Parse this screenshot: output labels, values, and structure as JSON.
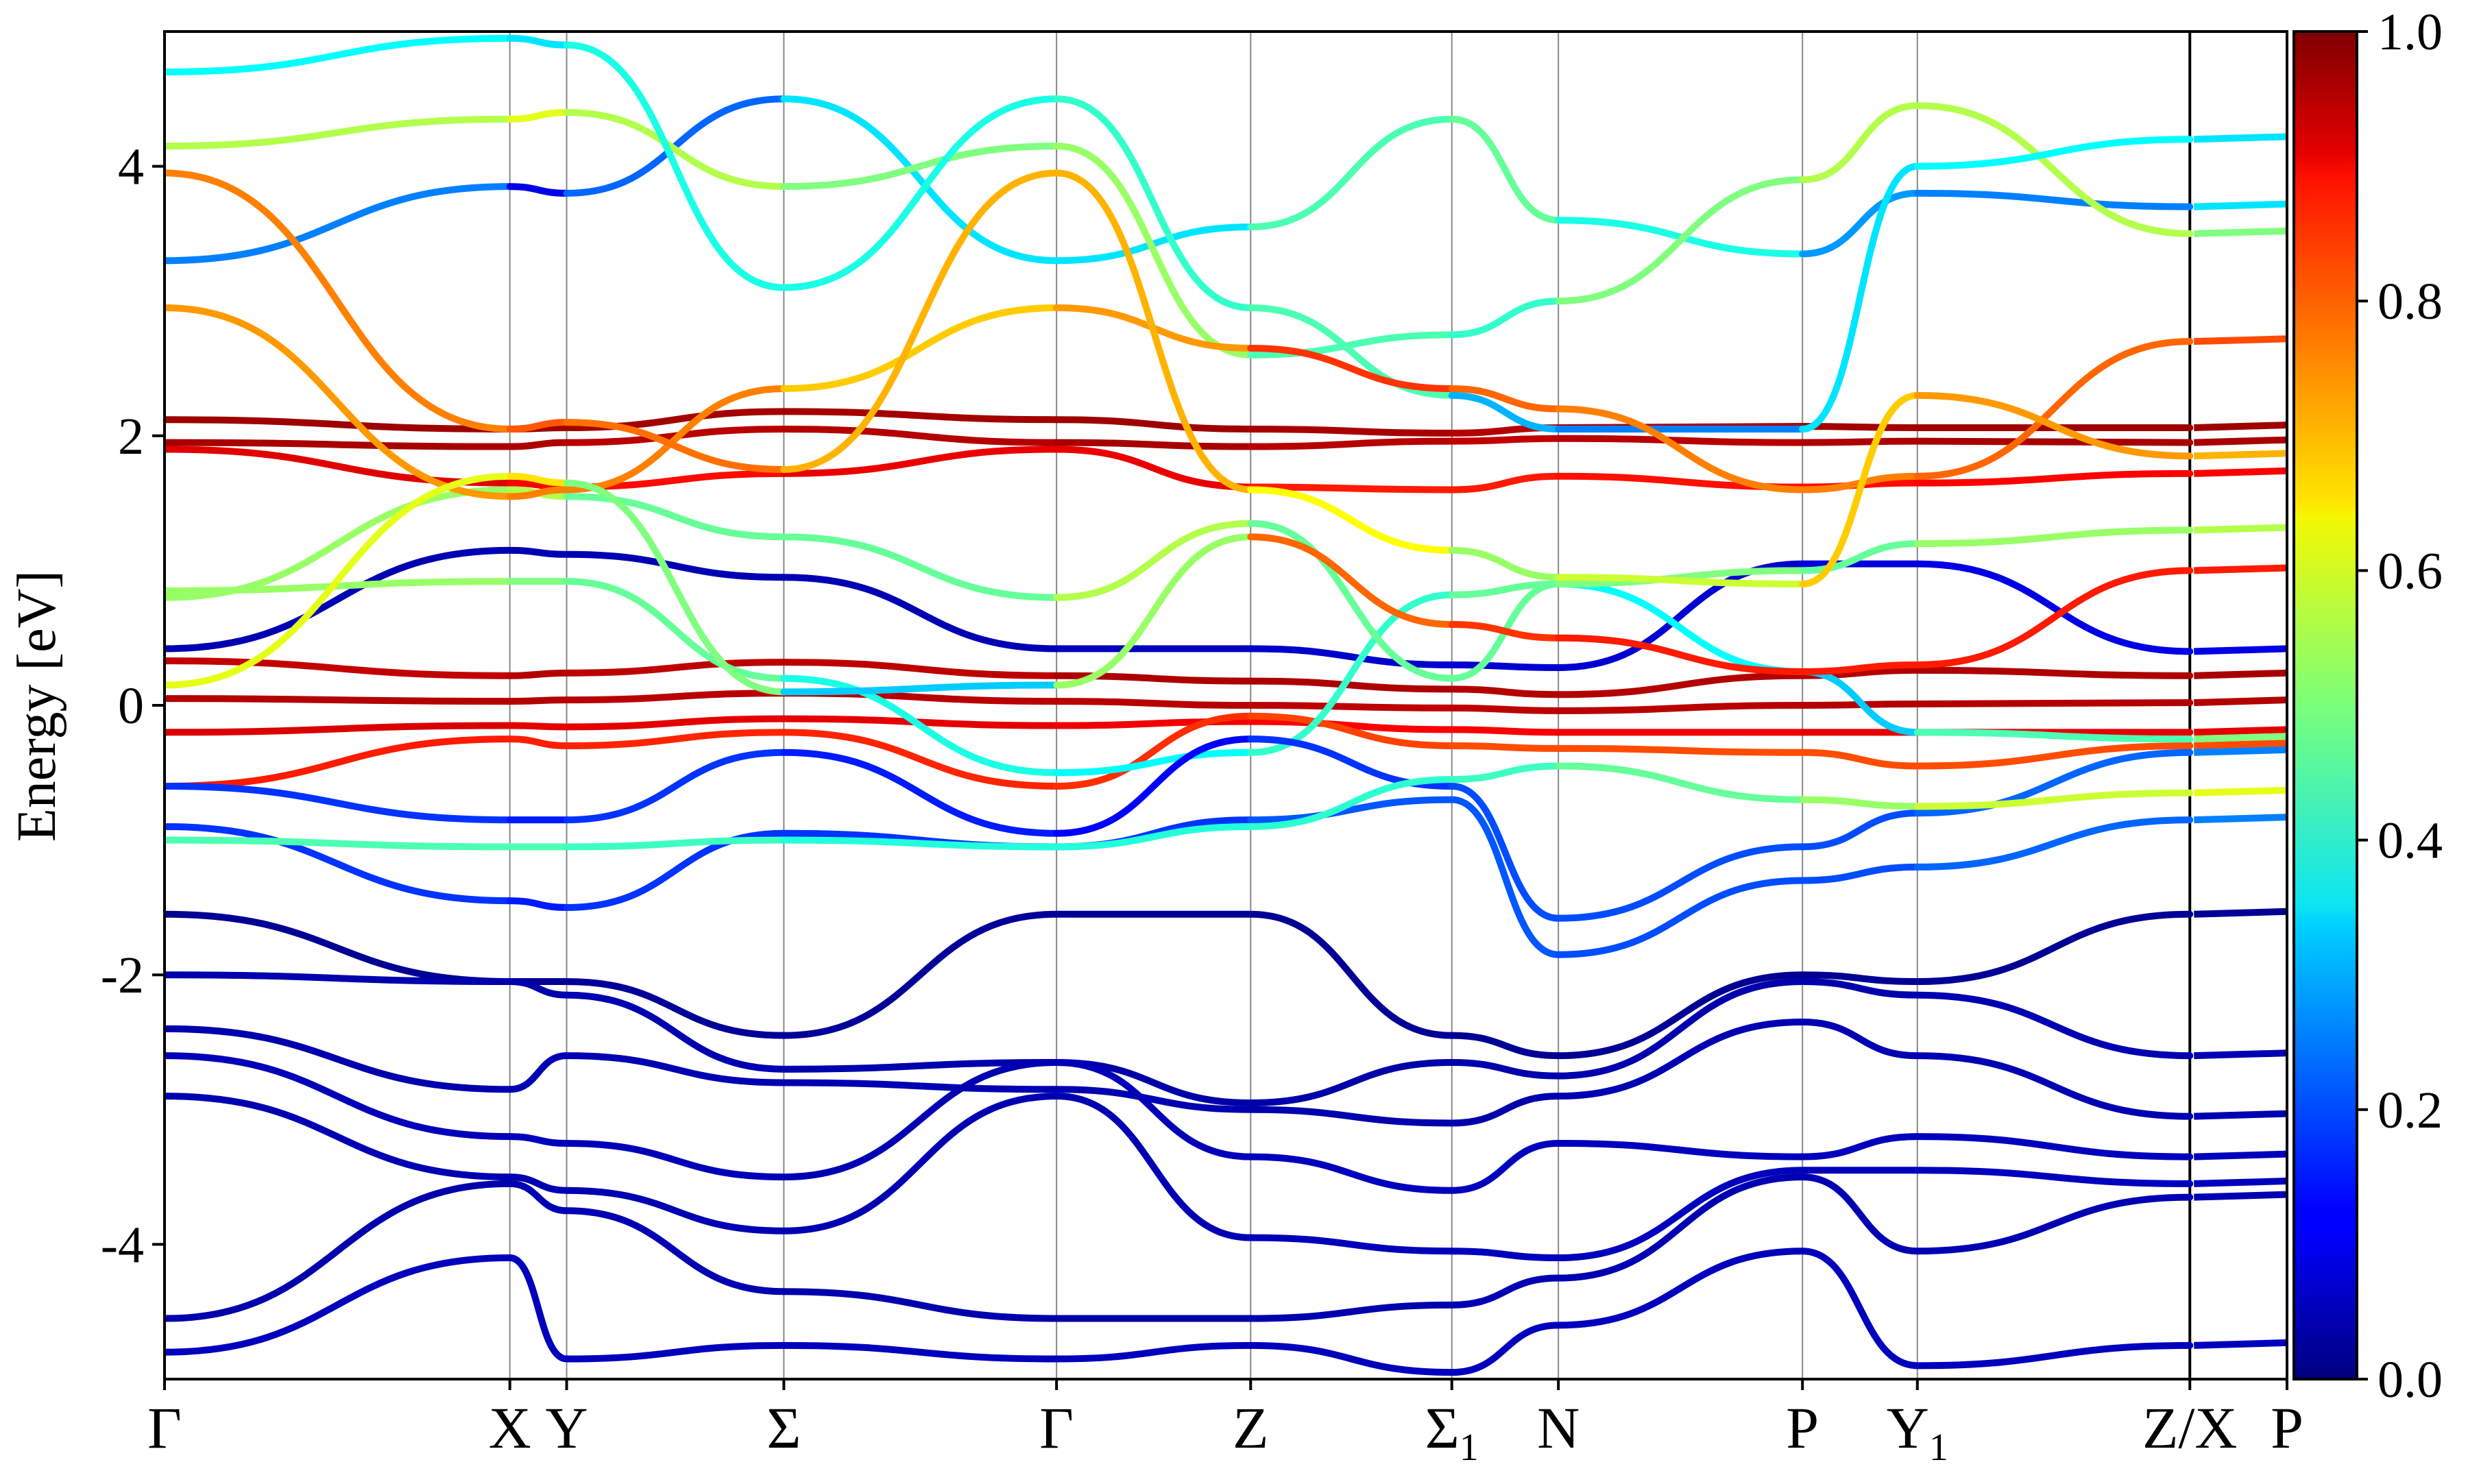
{
  "chart_data": {
    "type": "line",
    "title": "",
    "xlabel": "",
    "ylabel": "Energy [eV]",
    "ylim": [
      -5,
      5
    ],
    "y_ticks": [
      -4,
      -2,
      0,
      2,
      4
    ],
    "y_tick_labels": [
      "-4",
      "-2",
      "0",
      "2",
      "4"
    ],
    "high_symmetry_points": [
      {
        "label": "Γ",
        "sub": "",
        "k": 0.0
      },
      {
        "label": "X",
        "sub": "",
        "k": 1.617
      },
      {
        "label": "Y",
        "sub": "",
        "k": 1.883
      },
      {
        "label": "Σ",
        "sub": "",
        "k": 2.9
      },
      {
        "label": "Γ",
        "sub": "",
        "k": 4.177
      },
      {
        "label": "Z",
        "sub": "",
        "k": 5.086
      },
      {
        "label": "Σ",
        "sub": "1",
        "k": 6.028
      },
      {
        "label": "N",
        "sub": "",
        "k": 6.527
      },
      {
        "label": "P",
        "sub": "",
        "k": 7.67
      },
      {
        "label": "Y",
        "sub": "1",
        "k": 8.208
      },
      {
        "label": "Z/X",
        "sub": "",
        "k": 9.484
      },
      {
        "label": "P",
        "sub": "",
        "k": 9.939
      }
    ],
    "segment_break_k": 9.484,
    "colorbar": {
      "min": 0.0,
      "max": 1.0,
      "ticks": [
        0.0,
        0.2,
        0.4,
        0.6,
        0.8,
        1.0
      ],
      "tick_labels": [
        "0.0",
        "0.2",
        "0.4",
        "0.6",
        "0.8",
        "1.0"
      ],
      "colormap": "jet"
    },
    "grid": false,
    "series": [
      {
        "k": [
          0,
          1.617,
          1.883,
          2.9,
          4.177,
          5.086,
          6.028,
          6.527,
          7.67,
          8.208,
          9.484
        ],
        "energy": [
          2.12,
          2.05,
          2.06,
          2.18,
          2.12,
          2.05,
          2.02,
          2.06,
          2.07,
          2.06,
          2.06
        ],
        "weight": [
          0.97,
          0.97,
          0.97,
          0.96,
          0.97,
          0.97,
          0.95,
          0.95,
          0.96,
          0.97,
          0.97
        ]
      },
      {
        "k": [
          0,
          1.617,
          1.883,
          2.9,
          4.177,
          5.086,
          6.028,
          6.527,
          7.67,
          8.208,
          9.484
        ],
        "energy": [
          1.95,
          1.92,
          1.95,
          2.05,
          1.95,
          1.92,
          1.96,
          1.98,
          1.95,
          1.96,
          1.95
        ],
        "weight": [
          0.96,
          0.96,
          0.95,
          0.94,
          0.96,
          0.96,
          0.93,
          0.94,
          0.95,
          0.96,
          0.96
        ]
      },
      {
        "k": [
          0,
          1.617,
          1.883,
          2.9,
          4.177,
          5.086,
          6.028,
          6.527,
          7.67,
          8.208,
          9.484
        ],
        "energy": [
          1.9,
          1.65,
          1.62,
          1.72,
          1.9,
          1.62,
          1.6,
          1.7,
          1.62,
          1.65,
          1.72
        ],
        "weight": [
          0.93,
          0.88,
          0.87,
          0.86,
          0.93,
          0.86,
          0.84,
          0.86,
          0.86,
          0.87,
          0.88
        ]
      },
      {
        "k": [
          0,
          1.617,
          1.883,
          2.9,
          4.177,
          5.086,
          6.028,
          6.527,
          7.67,
          8.208,
          9.484
        ],
        "energy": [
          0.33,
          0.22,
          0.24,
          0.32,
          0.22,
          0.18,
          0.12,
          0.08,
          0.22,
          0.26,
          0.22
        ],
        "weight": [
          0.92,
          0.95,
          0.95,
          0.93,
          0.95,
          0.96,
          0.95,
          0.95,
          0.95,
          0.95,
          0.96
        ]
      },
      {
        "k": [
          0,
          1.617,
          1.883,
          2.9,
          4.177,
          5.086,
          6.028,
          6.527,
          7.67,
          8.208,
          9.484
        ],
        "energy": [
          0.05,
          0.03,
          0.04,
          0.09,
          0.03,
          0.0,
          -0.02,
          -0.04,
          0.0,
          0.01,
          0.02
        ],
        "weight": [
          0.95,
          0.95,
          0.95,
          0.94,
          0.95,
          0.94,
          0.94,
          0.94,
          0.95,
          0.95,
          0.95
        ]
      },
      {
        "k": [
          0,
          1.617,
          1.883,
          2.9,
          4.177,
          5.086,
          6.028,
          6.527,
          7.67,
          8.208,
          9.484
        ],
        "energy": [
          -0.2,
          -0.15,
          -0.16,
          -0.1,
          -0.15,
          -0.12,
          -0.18,
          -0.2,
          -0.2,
          -0.2,
          -0.2
        ],
        "weight": [
          0.92,
          0.9,
          0.9,
          0.9,
          0.9,
          0.88,
          0.88,
          0.88,
          0.9,
          0.9,
          0.9
        ]
      },
      {
        "k": [
          0,
          1.617,
          1.883,
          2.9,
          4.177,
          5.086,
          6.028,
          6.527,
          7.67,
          8.208,
          9.484
        ],
        "energy": [
          -0.6,
          -0.25,
          -0.3,
          -0.2,
          -0.6,
          -0.08,
          -0.3,
          -0.32,
          -0.35,
          -0.45,
          -0.3
        ],
        "weight": [
          0.85,
          0.85,
          0.84,
          0.84,
          0.84,
          0.82,
          0.8,
          0.8,
          0.8,
          0.8,
          0.8
        ]
      },
      {
        "k": [
          0,
          1.617,
          1.883,
          2.9,
          4.177,
          5.086,
          6.028,
          6.527,
          7.67,
          8.208,
          9.484
        ],
        "energy": [
          0.42,
          1.15,
          1.12,
          0.95,
          0.42,
          0.42,
          0.3,
          0.28,
          1.05,
          1.05,
          0.4
        ],
        "weight": [
          0.05,
          0.05,
          0.05,
          0.05,
          0.05,
          0.07,
          0.08,
          0.08,
          0.08,
          0.1,
          0.1
        ]
      },
      {
        "k": [
          0,
          1.617,
          1.883,
          2.9,
          4.177,
          5.086,
          6.028,
          6.527,
          7.67,
          8.208,
          9.484
        ],
        "energy": [
          0.85,
          0.92,
          0.92,
          0.2,
          -0.5,
          -0.35,
          0.82,
          0.9,
          0.25,
          -0.2,
          -0.25
        ],
        "weight": [
          0.55,
          0.5,
          0.5,
          0.45,
          0.35,
          0.4,
          0.45,
          0.5,
          0.25,
          0.4,
          0.5
        ]
      },
      {
        "k": [
          0,
          1.617,
          1.883,
          2.9,
          4.177,
          5.086,
          6.028,
          6.527,
          7.67,
          8.208,
          9.484
        ],
        "energy": [
          -0.6,
          -0.85,
          -0.85,
          -0.35,
          -0.95,
          -0.25,
          -0.6,
          -1.58,
          -1.05,
          -0.8,
          -0.35
        ],
        "weight": [
          0.2,
          0.15,
          0.15,
          0.2,
          0.1,
          0.15,
          0.2,
          0.2,
          0.2,
          0.2,
          0.25
        ]
      },
      {
        "k": [
          0,
          1.617,
          1.883,
          2.9,
          4.177,
          5.086,
          6.028,
          6.527,
          7.67,
          8.208,
          9.484
        ],
        "energy": [
          -0.9,
          -1.45,
          -1.5,
          -0.95,
          -1.05,
          -0.85,
          -0.7,
          -1.85,
          -1.3,
          -1.2,
          -0.85
        ],
        "weight": [
          0.2,
          0.15,
          0.15,
          0.2,
          0.15,
          0.2,
          0.22,
          0.2,
          0.2,
          0.2,
          0.25
        ]
      },
      {
        "k": [
          0,
          1.617,
          1.883,
          2.9,
          4.177,
          5.086,
          6.028,
          6.527,
          7.67,
          8.208,
          9.484
        ],
        "energy": [
          -1.0,
          -1.05,
          -1.05,
          -1.0,
          -1.05,
          -0.9,
          -0.55,
          -0.45,
          -0.7,
          -0.75,
          -0.65
        ],
        "weight": [
          0.45,
          0.45,
          0.45,
          0.42,
          0.4,
          0.42,
          0.42,
          0.45,
          0.5,
          0.55,
          0.6
        ]
      },
      {
        "k": [
          0,
          1.617,
          1.883,
          2.9,
          4.177,
          5.086,
          6.028,
          6.527,
          7.67,
          8.208,
          9.484
        ],
        "energy": [
          -1.55,
          -2.05,
          -2.05,
          -2.45,
          -1.55,
          -1.55,
          -2.45,
          -2.6,
          -2.0,
          -2.05,
          -1.55
        ],
        "weight": [
          0.02,
          0.02,
          0.02,
          0.03,
          0.02,
          0.02,
          0.02,
          0.02,
          0.02,
          0.02,
          0.02
        ]
      },
      {
        "k": [
          0,
          1.617,
          1.883,
          2.9,
          4.177,
          5.086,
          6.028,
          6.527,
          7.67,
          8.208,
          9.484
        ],
        "energy": [
          -2.0,
          -2.05,
          -2.15,
          -2.7,
          -2.65,
          -2.95,
          -2.65,
          -2.75,
          -2.05,
          -2.15,
          -2.6
        ],
        "weight": [
          0.05,
          0.04,
          0.05,
          0.05,
          0.04,
          0.04,
          0.04,
          0.05,
          0.04,
          0.05,
          0.05
        ]
      },
      {
        "k": [
          0,
          1.617,
          1.883,
          2.9,
          4.177,
          5.086,
          6.028,
          6.527,
          7.67,
          8.208,
          9.484
        ],
        "energy": [
          -2.4,
          -2.85,
          -2.6,
          -2.8,
          -2.85,
          -3.0,
          -3.1,
          -2.9,
          -2.35,
          -2.6,
          -3.05
        ],
        "weight": [
          0.04,
          0.05,
          0.05,
          0.05,
          0.05,
          0.05,
          0.04,
          0.05,
          0.05,
          0.05,
          0.05
        ]
      },
      {
        "k": [
          0,
          1.617,
          1.883,
          2.9,
          4.177,
          5.086,
          6.028,
          6.527,
          7.67,
          8.208,
          9.484
        ],
        "energy": [
          -2.6,
          -3.2,
          -3.25,
          -3.5,
          -2.65,
          -3.35,
          -3.6,
          -3.25,
          -3.35,
          -3.2,
          -3.35
        ],
        "weight": [
          0.05,
          0.06,
          0.06,
          0.05,
          0.05,
          0.06,
          0.06,
          0.06,
          0.06,
          0.06,
          0.06
        ]
      },
      {
        "k": [
          0,
          1.617,
          1.883,
          2.9,
          4.177,
          5.086,
          6.028,
          6.527,
          7.67,
          8.208,
          9.484
        ],
        "energy": [
          -2.9,
          -3.5,
          -3.6,
          -3.9,
          -2.9,
          -3.95,
          -4.05,
          -4.1,
          -3.45,
          -3.45,
          -3.55
        ],
        "weight": [
          0.05,
          0.05,
          0.05,
          0.05,
          0.05,
          0.05,
          0.06,
          0.06,
          0.06,
          0.06,
          0.06
        ]
      },
      {
        "k": [
          0,
          1.617,
          1.883,
          2.9,
          4.177,
          5.086,
          6.028,
          6.527,
          7.67,
          8.208,
          9.484
        ],
        "energy": [
          -4.55,
          -3.55,
          -3.75,
          -4.35,
          -4.55,
          -4.55,
          -4.45,
          -4.25,
          -3.5,
          -4.05,
          -3.65
        ],
        "weight": [
          0.04,
          0.05,
          0.05,
          0.05,
          0.04,
          0.04,
          0.05,
          0.05,
          0.05,
          0.05,
          0.05
        ]
      },
      {
        "k": [
          0,
          1.617,
          1.883,
          2.9,
          4.177,
          5.086,
          6.028,
          6.527,
          7.67,
          8.208,
          9.484
        ],
        "energy": [
          -4.8,
          -4.1,
          -4.85,
          -4.75,
          -4.85,
          -4.75,
          -4.95,
          -4.6,
          -4.05,
          -4.9,
          -4.75
        ],
        "weight": [
          0.06,
          0.06,
          0.06,
          0.06,
          0.06,
          0.06,
          0.06,
          0.06,
          0.06,
          0.06,
          0.06
        ]
      },
      {
        "k": [
          0,
          1.617,
          1.883,
          2.9,
          4.177,
          5.086,
          6.028,
          6.527,
          7.67,
          8.208,
          9.484
        ],
        "energy": [
          3.3,
          3.85,
          3.8,
          4.5,
          3.3,
          3.55,
          4.35,
          3.6,
          3.35,
          3.8,
          3.7
        ],
        "weight": [
          0.4,
          0.1,
          0.1,
          0.35,
          0.35,
          0.35,
          0.55,
          0.4,
          0.4,
          0.15,
          0.35
        ]
      },
      {
        "k": [
          0,
          1.617,
          1.883,
          2.9,
          4.177,
          5.086,
          6.028,
          6.527,
          7.67,
          8.208,
          9.484
        ],
        "energy": [
          4.15,
          4.35,
          4.4,
          3.85,
          4.15,
          2.6,
          2.75,
          3.0,
          3.9,
          4.45,
          3.5
        ],
        "weight": [
          0.5,
          0.6,
          0.6,
          0.5,
          0.5,
          0.55,
          0.35,
          0.5,
          0.5,
          0.6,
          0.5
        ]
      },
      {
        "k": [
          0,
          1.617,
          1.883,
          2.9,
          4.177,
          5.086,
          6.028,
          6.527,
          7.67,
          8.208,
          9.484
        ],
        "energy": [
          4.7,
          4.95,
          4.9,
          3.1,
          4.5,
          2.95,
          2.3,
          2.05,
          2.05,
          4.0,
          4.2
        ],
        "weight": [
          0.4,
          0.35,
          0.35,
          0.45,
          0.35,
          0.5,
          0.4,
          0.2,
          0.3,
          0.4,
          0.35
        ]
      },
      {
        "k": [
          0,
          1.617,
          1.883,
          2.9,
          4.177,
          5.086,
          6.028,
          6.527,
          7.67,
          8.208,
          9.484
        ],
        "energy": [
          0.8,
          1.6,
          1.55,
          1.25,
          0.8,
          1.35,
          0.2,
          0.9,
          1.0,
          1.2,
          1.3
        ],
        "weight": [
          0.5,
          0.55,
          0.55,
          0.4,
          0.55,
          0.55,
          0.4,
          0.55,
          0.45,
          0.5,
          0.55
        ]
      },
      {
        "k": [
          0,
          1.617,
          1.883,
          2.9,
          4.177,
          5.086,
          6.028,
          6.527,
          7.67,
          8.208,
          9.484
        ],
        "energy": [
          2.95,
          1.55,
          1.6,
          2.35,
          2.95,
          2.65,
          2.35,
          2.2,
          1.6,
          1.7,
          2.7
        ],
        "weight": [
          0.7,
          0.75,
          0.75,
          0.75,
          0.6,
          0.85,
          0.8,
          0.75,
          0.75,
          0.75,
          0.8
        ]
      },
      {
        "k": [
          0,
          1.617,
          1.883,
          2.9,
          4.177,
          5.086,
          6.028,
          6.527,
          7.67,
          8.208,
          9.484
        ],
        "energy": [
          0.15,
          1.7,
          1.65,
          0.1,
          0.15,
          1.25,
          0.6,
          0.5,
          0.25,
          0.3,
          1.0
        ],
        "weight": [
          0.55,
          0.65,
          0.65,
          0.35,
          0.3,
          0.75,
          0.8,
          0.85,
          0.85,
          0.85,
          0.85
        ]
      },
      {
        "k": [
          0,
          1.617,
          1.883,
          2.9,
          4.177,
          5.086,
          6.028,
          6.527,
          7.67,
          8.208,
          9.484
        ],
        "energy": [
          3.95,
          2.05,
          2.1,
          1.75,
          3.95,
          1.6,
          1.15,
          0.95,
          0.9,
          2.3,
          1.85
        ],
        "weight": [
          0.7,
          0.8,
          0.78,
          0.75,
          0.65,
          0.75,
          0.5,
          0.55,
          0.6,
          0.75,
          0.7
        ]
      }
    ]
  }
}
